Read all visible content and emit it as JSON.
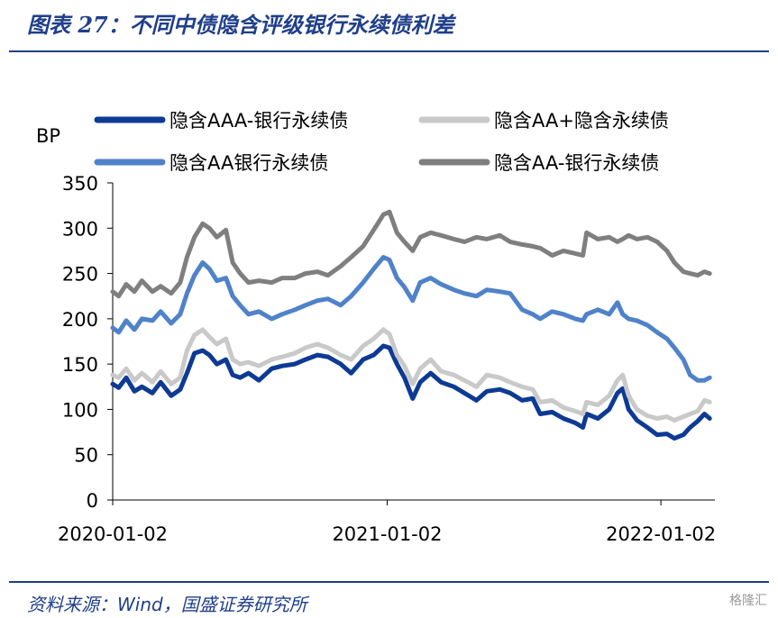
{
  "header": {
    "title": "图表 27：不同中债隐含评级银行永续债利差"
  },
  "footer": {
    "source": "资料来源：Wind，国盛证券研究所",
    "watermark": "格隆汇"
  },
  "chart_data": {
    "type": "line",
    "ylabel": "BP",
    "ylim": [
      0,
      350
    ],
    "yticks": [
      0,
      50,
      100,
      150,
      200,
      250,
      300,
      350
    ],
    "xlim": [
      "2020-01-02",
      "2022-03-15"
    ],
    "xticks": [
      "2020-01-02",
      "2021-01-02",
      "2022-01-02"
    ],
    "grid": false,
    "legend": "top",
    "series": [
      {
        "name": "隐含AAA-银行永续债",
        "color": "#0d3a94",
        "points": [
          [
            "2020-01-02",
            128
          ],
          [
            "2020-01-10",
            124
          ],
          [
            "2020-01-20",
            135
          ],
          [
            "2020-01-31",
            120
          ],
          [
            "2020-02-10",
            125
          ],
          [
            "2020-02-24",
            118
          ],
          [
            "2020-03-06",
            130
          ],
          [
            "2020-03-20",
            115
          ],
          [
            "2020-04-01",
            122
          ],
          [
            "2020-04-10",
            140
          ],
          [
            "2020-04-20",
            162
          ],
          [
            "2020-05-01",
            165
          ],
          [
            "2020-05-10",
            160
          ],
          [
            "2020-05-20",
            150
          ],
          [
            "2020-06-01",
            155
          ],
          [
            "2020-06-10",
            138
          ],
          [
            "2020-06-20",
            135
          ],
          [
            "2020-07-01",
            140
          ],
          [
            "2020-07-15",
            132
          ],
          [
            "2020-08-01",
            145
          ],
          [
            "2020-08-15",
            148
          ],
          [
            "2020-09-01",
            150
          ],
          [
            "2020-09-15",
            155
          ],
          [
            "2020-10-01",
            160
          ],
          [
            "2020-10-15",
            158
          ],
          [
            "2020-11-01",
            150
          ],
          [
            "2020-11-15",
            140
          ],
          [
            "2020-12-01",
            155
          ],
          [
            "2020-12-15",
            160
          ],
          [
            "2020-12-28",
            170
          ],
          [
            "2021-01-05",
            168
          ],
          [
            "2021-01-15",
            150
          ],
          [
            "2021-01-25",
            135
          ],
          [
            "2021-02-05",
            112
          ],
          [
            "2021-02-15",
            130
          ],
          [
            "2021-03-01",
            140
          ],
          [
            "2021-03-15",
            130
          ],
          [
            "2021-04-01",
            125
          ],
          [
            "2021-04-15",
            118
          ],
          [
            "2021-05-01",
            110
          ],
          [
            "2021-05-15",
            120
          ],
          [
            "2021-06-01",
            122
          ],
          [
            "2021-06-15",
            118
          ],
          [
            "2021-07-01",
            110
          ],
          [
            "2021-07-15",
            112
          ],
          [
            "2021-07-25",
            95
          ],
          [
            "2021-08-10",
            97
          ],
          [
            "2021-08-25",
            90
          ],
          [
            "2021-09-10",
            85
          ],
          [
            "2021-09-20",
            80
          ],
          [
            "2021-09-25",
            95
          ],
          [
            "2021-10-10",
            90
          ],
          [
            "2021-10-25",
            100
          ],
          [
            "2021-11-05",
            118
          ],
          [
            "2021-11-12",
            123
          ],
          [
            "2021-11-20",
            100
          ],
          [
            "2021-12-01",
            88
          ],
          [
            "2021-12-15",
            80
          ],
          [
            "2021-12-28",
            72
          ],
          [
            "2022-01-10",
            73
          ],
          [
            "2022-01-20",
            68
          ],
          [
            "2022-02-01",
            72
          ],
          [
            "2022-02-10",
            80
          ],
          [
            "2022-02-20",
            87
          ],
          [
            "2022-03-01",
            95
          ],
          [
            "2022-03-08",
            90
          ]
        ]
      },
      {
        "name": "隐含AA+隐含永续债",
        "color": "#c9c9c9",
        "points": [
          [
            "2020-01-02",
            138
          ],
          [
            "2020-01-10",
            135
          ],
          [
            "2020-01-20",
            145
          ],
          [
            "2020-01-31",
            132
          ],
          [
            "2020-02-10",
            140
          ],
          [
            "2020-02-24",
            130
          ],
          [
            "2020-03-06",
            142
          ],
          [
            "2020-03-20",
            128
          ],
          [
            "2020-04-01",
            135
          ],
          [
            "2020-04-10",
            165
          ],
          [
            "2020-04-20",
            182
          ],
          [
            "2020-05-01",
            188
          ],
          [
            "2020-05-10",
            180
          ],
          [
            "2020-05-20",
            172
          ],
          [
            "2020-06-01",
            178
          ],
          [
            "2020-06-10",
            155
          ],
          [
            "2020-06-20",
            150
          ],
          [
            "2020-07-01",
            152
          ],
          [
            "2020-07-15",
            148
          ],
          [
            "2020-08-01",
            155
          ],
          [
            "2020-08-15",
            158
          ],
          [
            "2020-09-01",
            162
          ],
          [
            "2020-09-15",
            168
          ],
          [
            "2020-10-01",
            172
          ],
          [
            "2020-10-15",
            168
          ],
          [
            "2020-11-01",
            160
          ],
          [
            "2020-11-15",
            155
          ],
          [
            "2020-12-01",
            170
          ],
          [
            "2020-12-15",
            178
          ],
          [
            "2020-12-28",
            188
          ],
          [
            "2021-01-05",
            183
          ],
          [
            "2021-01-15",
            160
          ],
          [
            "2021-01-25",
            148
          ],
          [
            "2021-02-05",
            128
          ],
          [
            "2021-02-15",
            145
          ],
          [
            "2021-03-01",
            155
          ],
          [
            "2021-03-15",
            142
          ],
          [
            "2021-04-01",
            138
          ],
          [
            "2021-04-15",
            132
          ],
          [
            "2021-05-01",
            125
          ],
          [
            "2021-05-15",
            138
          ],
          [
            "2021-06-01",
            135
          ],
          [
            "2021-06-15",
            130
          ],
          [
            "2021-07-01",
            125
          ],
          [
            "2021-07-15",
            122
          ],
          [
            "2021-07-25",
            108
          ],
          [
            "2021-08-10",
            110
          ],
          [
            "2021-08-25",
            102
          ],
          [
            "2021-09-10",
            98
          ],
          [
            "2021-09-20",
            95
          ],
          [
            "2021-09-25",
            108
          ],
          [
            "2021-10-10",
            105
          ],
          [
            "2021-10-25",
            115
          ],
          [
            "2021-11-05",
            132
          ],
          [
            "2021-11-12",
            138
          ],
          [
            "2021-11-20",
            115
          ],
          [
            "2021-12-01",
            100
          ],
          [
            "2021-12-15",
            93
          ],
          [
            "2021-12-28",
            90
          ],
          [
            "2022-01-10",
            92
          ],
          [
            "2022-01-20",
            88
          ],
          [
            "2022-02-01",
            92
          ],
          [
            "2022-02-10",
            95
          ],
          [
            "2022-02-20",
            98
          ],
          [
            "2022-03-01",
            110
          ],
          [
            "2022-03-08",
            108
          ]
        ]
      },
      {
        "name": "隐含AA银行永续债",
        "color": "#4f82c9",
        "points": [
          [
            "2020-01-02",
            190
          ],
          [
            "2020-01-10",
            185
          ],
          [
            "2020-01-20",
            198
          ],
          [
            "2020-01-31",
            188
          ],
          [
            "2020-02-10",
            200
          ],
          [
            "2020-02-24",
            198
          ],
          [
            "2020-03-06",
            208
          ],
          [
            "2020-03-20",
            195
          ],
          [
            "2020-04-01",
            205
          ],
          [
            "2020-04-10",
            228
          ],
          [
            "2020-04-20",
            248
          ],
          [
            "2020-05-01",
            262
          ],
          [
            "2020-05-10",
            255
          ],
          [
            "2020-05-20",
            242
          ],
          [
            "2020-06-01",
            245
          ],
          [
            "2020-06-10",
            225
          ],
          [
            "2020-06-20",
            215
          ],
          [
            "2020-07-01",
            205
          ],
          [
            "2020-07-15",
            208
          ],
          [
            "2020-08-01",
            200
          ],
          [
            "2020-08-15",
            205
          ],
          [
            "2020-09-01",
            210
          ],
          [
            "2020-09-15",
            215
          ],
          [
            "2020-10-01",
            220
          ],
          [
            "2020-10-15",
            222
          ],
          [
            "2020-11-01",
            215
          ],
          [
            "2020-11-15",
            225
          ],
          [
            "2020-12-01",
            240
          ],
          [
            "2020-12-15",
            255
          ],
          [
            "2020-12-28",
            268
          ],
          [
            "2021-01-05",
            265
          ],
          [
            "2021-01-15",
            245
          ],
          [
            "2021-01-25",
            235
          ],
          [
            "2021-02-05",
            220
          ],
          [
            "2021-02-15",
            240
          ],
          [
            "2021-03-01",
            245
          ],
          [
            "2021-03-15",
            238
          ],
          [
            "2021-04-01",
            232
          ],
          [
            "2021-04-15",
            228
          ],
          [
            "2021-05-01",
            225
          ],
          [
            "2021-05-15",
            232
          ],
          [
            "2021-06-01",
            230
          ],
          [
            "2021-06-15",
            228
          ],
          [
            "2021-07-01",
            210
          ],
          [
            "2021-07-15",
            205
          ],
          [
            "2021-07-25",
            200
          ],
          [
            "2021-08-10",
            208
          ],
          [
            "2021-08-25",
            205
          ],
          [
            "2021-09-10",
            200
          ],
          [
            "2021-09-20",
            198
          ],
          [
            "2021-09-25",
            205
          ],
          [
            "2021-10-10",
            210
          ],
          [
            "2021-10-25",
            205
          ],
          [
            "2021-11-05",
            218
          ],
          [
            "2021-11-12",
            205
          ],
          [
            "2021-11-20",
            200
          ],
          [
            "2021-12-01",
            198
          ],
          [
            "2021-12-15",
            193
          ],
          [
            "2021-12-28",
            185
          ],
          [
            "2022-01-10",
            178
          ],
          [
            "2022-01-20",
            168
          ],
          [
            "2022-02-01",
            155
          ],
          [
            "2022-02-10",
            138
          ],
          [
            "2022-02-20",
            132
          ],
          [
            "2022-03-01",
            132
          ],
          [
            "2022-03-08",
            135
          ]
        ]
      },
      {
        "name": "隐含AA-银行永续债",
        "color": "#7f7f7f",
        "points": [
          [
            "2020-01-02",
            230
          ],
          [
            "2020-01-10",
            225
          ],
          [
            "2020-01-20",
            238
          ],
          [
            "2020-01-31",
            230
          ],
          [
            "2020-02-10",
            242
          ],
          [
            "2020-02-24",
            230
          ],
          [
            "2020-03-06",
            236
          ],
          [
            "2020-03-20",
            228
          ],
          [
            "2020-04-01",
            240
          ],
          [
            "2020-04-10",
            268
          ],
          [
            "2020-04-20",
            290
          ],
          [
            "2020-05-01",
            305
          ],
          [
            "2020-05-10",
            300
          ],
          [
            "2020-05-20",
            290
          ],
          [
            "2020-06-01",
            298
          ],
          [
            "2020-06-10",
            262
          ],
          [
            "2020-06-20",
            250
          ],
          [
            "2020-07-01",
            240
          ],
          [
            "2020-07-15",
            242
          ],
          [
            "2020-08-01",
            240
          ],
          [
            "2020-08-15",
            245
          ],
          [
            "2020-09-01",
            245
          ],
          [
            "2020-09-15",
            250
          ],
          [
            "2020-10-01",
            252
          ],
          [
            "2020-10-15",
            248
          ],
          [
            "2020-11-01",
            258
          ],
          [
            "2020-11-15",
            268
          ],
          [
            "2020-12-01",
            280
          ],
          [
            "2020-12-15",
            298
          ],
          [
            "2020-12-28",
            315
          ],
          [
            "2021-01-05",
            318
          ],
          [
            "2021-01-15",
            295
          ],
          [
            "2021-01-25",
            285
          ],
          [
            "2021-02-05",
            275
          ],
          [
            "2021-02-15",
            290
          ],
          [
            "2021-03-01",
            295
          ],
          [
            "2021-03-15",
            292
          ],
          [
            "2021-04-01",
            288
          ],
          [
            "2021-04-15",
            285
          ],
          [
            "2021-05-01",
            290
          ],
          [
            "2021-05-15",
            288
          ],
          [
            "2021-06-01",
            292
          ],
          [
            "2021-06-15",
            285
          ],
          [
            "2021-07-01",
            282
          ],
          [
            "2021-07-15",
            280
          ],
          [
            "2021-07-25",
            278
          ],
          [
            "2021-08-10",
            270
          ],
          [
            "2021-08-25",
            275
          ],
          [
            "2021-09-10",
            272
          ],
          [
            "2021-09-20",
            270
          ],
          [
            "2021-09-25",
            295
          ],
          [
            "2021-10-10",
            288
          ],
          [
            "2021-10-25",
            290
          ],
          [
            "2021-11-05",
            285
          ],
          [
            "2021-11-12",
            288
          ],
          [
            "2021-11-20",
            292
          ],
          [
            "2021-12-01",
            288
          ],
          [
            "2021-12-15",
            290
          ],
          [
            "2021-12-28",
            285
          ],
          [
            "2022-01-10",
            275
          ],
          [
            "2022-01-20",
            262
          ],
          [
            "2022-02-01",
            252
          ],
          [
            "2022-02-10",
            250
          ],
          [
            "2022-02-20",
            248
          ],
          [
            "2022-03-01",
            252
          ],
          [
            "2022-03-08",
            250
          ]
        ]
      }
    ]
  }
}
